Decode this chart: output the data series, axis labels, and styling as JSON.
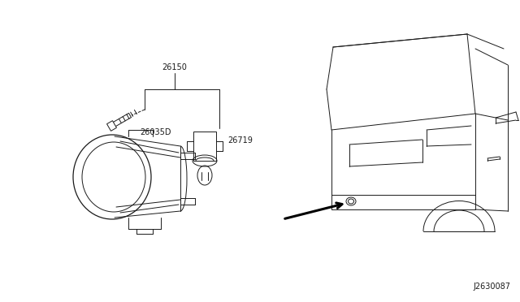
{
  "bg_color": "#ffffff",
  "line_color": "#1a1a1a",
  "label_26150": "26150",
  "label_26719": "26719",
  "label_26035D": "26035D",
  "label_J2630087": "J2630087",
  "fig_width": 6.4,
  "fig_height": 3.72,
  "dpi": 100
}
